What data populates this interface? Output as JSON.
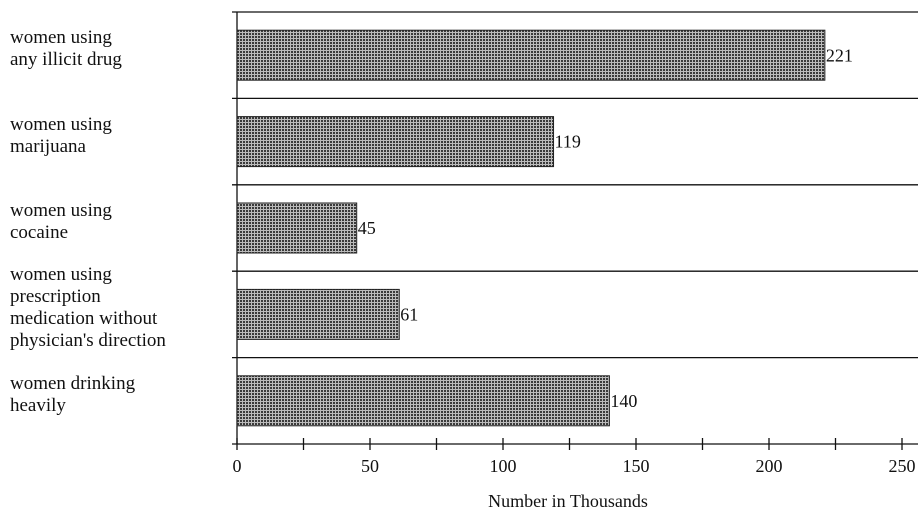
{
  "chart_data": {
    "type": "barh",
    "categories": [
      "women using\nany illicit drug",
      "women using\nmarijuana",
      "women using\ncocaine",
      "women using\nprescription\nmedication without\nphysician's direction",
      "women drinking\nheavily"
    ],
    "values": [
      221,
      119,
      45,
      61,
      140
    ],
    "color": "#3a3a3a",
    "xlabel": "Number in Thousands",
    "xlim": [
      0,
      250
    ],
    "xticks": [
      0,
      50,
      100,
      150,
      200,
      250
    ],
    "xminorticks": [
      25,
      75,
      125,
      175,
      225
    ]
  }
}
